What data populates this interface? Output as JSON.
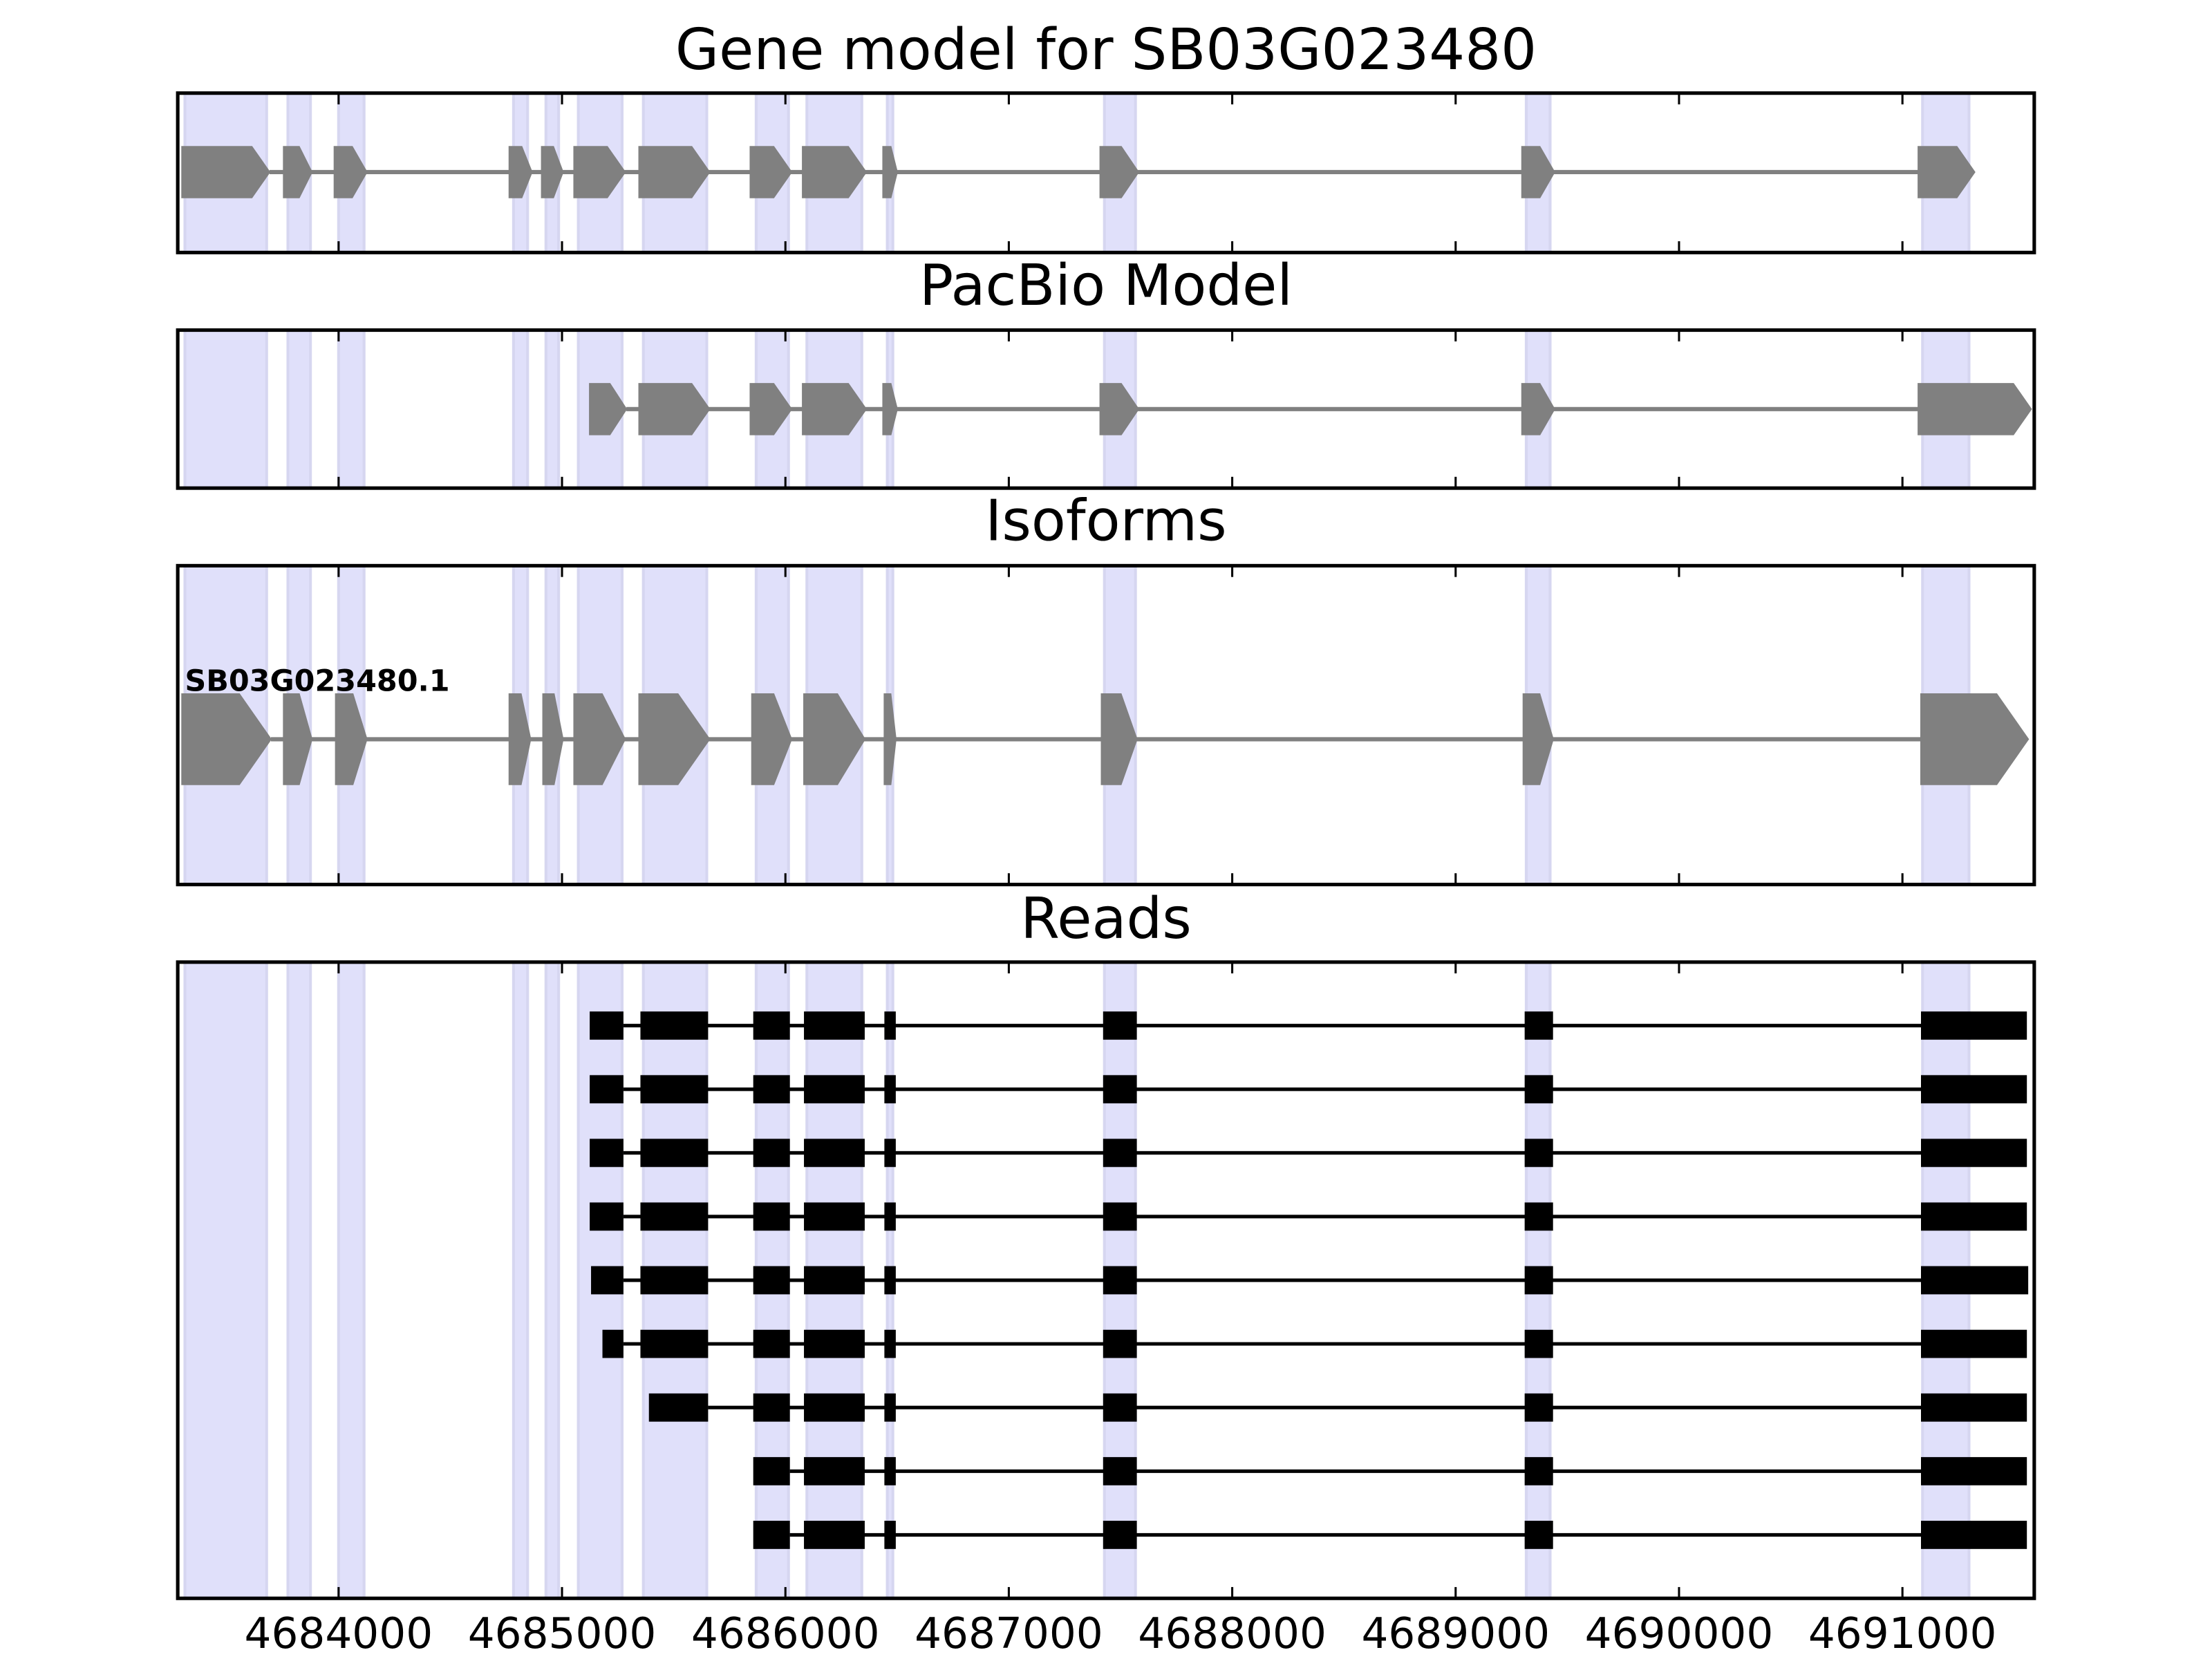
{
  "chart_data": {
    "type": "gene-tracks",
    "xlim": [
      4683280,
      4691590
    ],
    "xticks": [
      4684000,
      4685000,
      4686000,
      4687000,
      4688000,
      4689000,
      4690000,
      4691000
    ],
    "highlights": [
      [
        4683312,
        4683678
      ],
      [
        4683773,
        4683874
      ],
      [
        4684000,
        4684114
      ],
      [
        4684783,
        4684846
      ],
      [
        4684928,
        4684985
      ],
      [
        4685073,
        4685269
      ],
      [
        4685364,
        4685648
      ],
      [
        4685869,
        4686014
      ],
      [
        4686096,
        4686342
      ],
      [
        4686456,
        4686481
      ],
      [
        4687428,
        4687567
      ],
      [
        4689316,
        4689423
      ],
      [
        4691090,
        4691298
      ]
    ],
    "panels": [
      {
        "title": "Gene model for SB03G023480",
        "style": "arrow",
        "features": [
          {
            "exons": [
              [
                4683299,
                4683691
              ],
              [
                4683754,
                4683880
              ],
              [
                4683981,
                4684126
              ],
              [
                4684764,
                4684865
              ],
              [
                4684909,
                4685004
              ],
              [
                4685054,
                4685282
              ],
              [
                4685345,
                4685660
              ],
              [
                4685843,
                4686027
              ],
              [
                4686077,
                4686361
              ],
              [
                4686437,
                4686500
              ],
              [
                4687409,
                4687580
              ],
              [
                4689297,
                4689442
              ],
              [
                4691071,
                4691323
              ]
            ]
          }
        ]
      },
      {
        "title": "PacBio Model",
        "style": "arrow",
        "features": [
          {
            "exons": [
              [
                4685124,
                4685288
              ],
              [
                4685345,
                4685660
              ],
              [
                4685843,
                4686027
              ],
              [
                4686077,
                4686361
              ],
              [
                4686437,
                4686500
              ],
              [
                4687409,
                4687580
              ],
              [
                4689297,
                4689442
              ],
              [
                4691071,
                4691576
              ]
            ]
          }
        ]
      },
      {
        "title": "Isoforms",
        "style": "arrow",
        "features": [
          {
            "label": "SB03G023480.1",
            "exons": [
              [
                4683299,
                4683697
              ],
              [
                4683754,
                4683880
              ],
              [
                4683987,
                4684126
              ],
              [
                4684764,
                4684859
              ],
              [
                4684915,
                4685004
              ],
              [
                4685054,
                4685282
              ],
              [
                4685345,
                4685660
              ],
              [
                4685850,
                4686027
              ],
              [
                4686083,
                4686355
              ],
              [
                4686443,
                4686494
              ],
              [
                4687415,
                4687573
              ],
              [
                4689303,
                4689436
              ],
              [
                4691083,
                4691563
              ]
            ]
          }
        ]
      },
      {
        "title": "Reads",
        "style": "block",
        "features": [
          {
            "exons": [
              [
                4685124,
                4685275
              ],
              [
                4685351,
                4685654
              ],
              [
                4685856,
                4686020
              ],
              [
                4686083,
                4686355
              ],
              [
                4686443,
                4686494
              ],
              [
                4687422,
                4687573
              ],
              [
                4689309,
                4689436
              ],
              [
                4691083,
                4691557
              ]
            ]
          },
          {
            "exons": [
              [
                4685124,
                4685275
              ],
              [
                4685351,
                4685654
              ],
              [
                4685856,
                4686020
              ],
              [
                4686083,
                4686355
              ],
              [
                4686443,
                4686494
              ],
              [
                4687422,
                4687573
              ],
              [
                4689309,
                4689436
              ],
              [
                4691083,
                4691557
              ]
            ]
          },
          {
            "exons": [
              [
                4685124,
                4685275
              ],
              [
                4685351,
                4685654
              ],
              [
                4685856,
                4686020
              ],
              [
                4686083,
                4686355
              ],
              [
                4686443,
                4686494
              ],
              [
                4687422,
                4687573
              ],
              [
                4689309,
                4689436
              ],
              [
                4691083,
                4691557
              ]
            ]
          },
          {
            "exons": [
              [
                4685124,
                4685275
              ],
              [
                4685351,
                4685654
              ],
              [
                4685856,
                4686020
              ],
              [
                4686083,
                4686355
              ],
              [
                4686443,
                4686494
              ],
              [
                4687422,
                4687573
              ],
              [
                4689309,
                4689436
              ],
              [
                4691083,
                4691557
              ]
            ]
          },
          {
            "exons": [
              [
                4685130,
                4685275
              ],
              [
                4685351,
                4685654
              ],
              [
                4685856,
                4686020
              ],
              [
                4686083,
                4686355
              ],
              [
                4686443,
                4686494
              ],
              [
                4687422,
                4687573
              ],
              [
                4689309,
                4689436
              ],
              [
                4691083,
                4691563
              ]
            ]
          },
          {
            "exons": [
              [
                4685181,
                4685275
              ],
              [
                4685351,
                4685654
              ],
              [
                4685856,
                4686020
              ],
              [
                4686083,
                4686355
              ],
              [
                4686443,
                4686494
              ],
              [
                4687422,
                4687573
              ],
              [
                4689309,
                4689436
              ],
              [
                4691083,
                4691557
              ]
            ]
          },
          {
            "exons": [
              [
                4685389,
                4685654
              ],
              [
                4685856,
                4686020
              ],
              [
                4686083,
                4686355
              ],
              [
                4686443,
                4686494
              ],
              [
                4687422,
                4687573
              ],
              [
                4689309,
                4689436
              ],
              [
                4691083,
                4691557
              ]
            ]
          },
          {
            "exons": [
              [
                4685856,
                4686020
              ],
              [
                4686083,
                4686355
              ],
              [
                4686443,
                4686494
              ],
              [
                4687422,
                4687573
              ],
              [
                4689309,
                4689436
              ],
              [
                4691083,
                4691557
              ]
            ]
          },
          {
            "exons": [
              [
                4685856,
                4686020
              ],
              [
                4686083,
                4686355
              ],
              [
                4686443,
                4686494
              ],
              [
                4687422,
                4687573
              ],
              [
                4689309,
                4689436
              ],
              [
                4691083,
                4691557
              ]
            ]
          }
        ]
      }
    ]
  }
}
